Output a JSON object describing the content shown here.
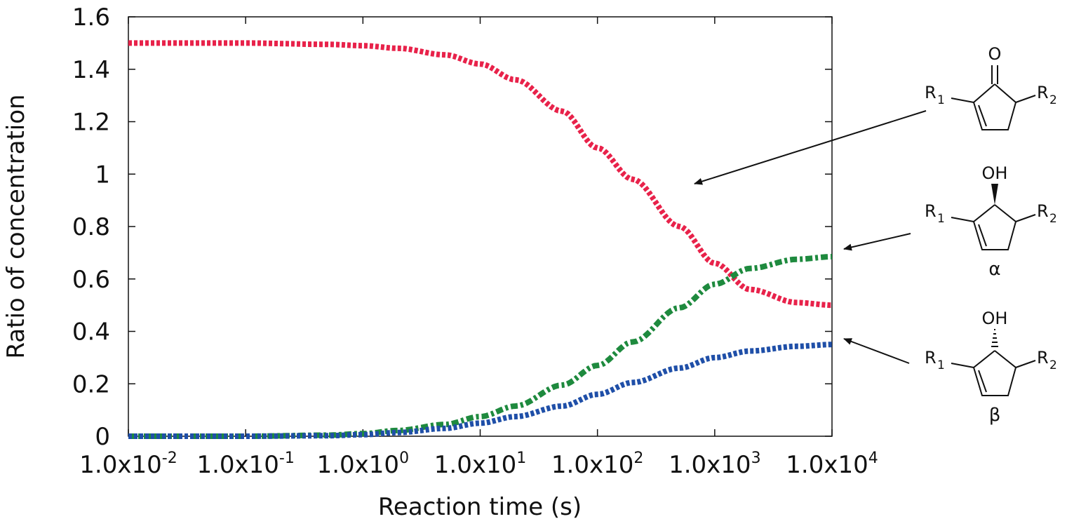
{
  "chart_data": {
    "type": "line",
    "xscale": "log",
    "xlim": [
      0.01,
      10000
    ],
    "ylim": [
      0,
      1.6
    ],
    "ylabel": "Ratio of concentration",
    "xlabel": "Reaction time (s)",
    "x_ticks": [
      {
        "value": 0.01,
        "label": "1.0x10",
        "exp": "-2"
      },
      {
        "value": 0.1,
        "label": "1.0x10",
        "exp": "-1"
      },
      {
        "value": 1,
        "label": "1.0x10",
        "exp": "0"
      },
      {
        "value": 10,
        "label": "1.0x10",
        "exp": "1"
      },
      {
        "value": 100,
        "label": "1.0x10",
        "exp": "2"
      },
      {
        "value": 1000,
        "label": "1.0x10",
        "exp": "3"
      },
      {
        "value": 10000,
        "label": "1.0x10",
        "exp": "4"
      }
    ],
    "y_ticks": [
      {
        "value": 0,
        "label": "0"
      },
      {
        "value": 0.2,
        "label": "0.2"
      },
      {
        "value": 0.4,
        "label": "0.4"
      },
      {
        "value": 0.6,
        "label": "0.6"
      },
      {
        "value": 0.8,
        "label": "0.8"
      },
      {
        "value": 1.0,
        "label": "1"
      },
      {
        "value": 1.2,
        "label": "1.2"
      },
      {
        "value": 1.4,
        "label": "1.4"
      },
      {
        "value": 1.6,
        "label": "1.6"
      }
    ],
    "series": [
      {
        "color": "#e8224a",
        "dash": "dotted",
        "x": [
          0.01,
          0.1,
          0.5,
          1,
          2,
          5,
          10,
          20,
          50,
          100,
          200,
          500,
          1000,
          2000,
          5000,
          10000
        ],
        "y": [
          1.5,
          1.5,
          1.495,
          1.49,
          1.48,
          1.455,
          1.42,
          1.36,
          1.24,
          1.1,
          0.98,
          0.8,
          0.66,
          0.56,
          0.51,
          0.5
        ]
      },
      {
        "color": "#1e8a3e",
        "dash": "dashdot",
        "x": [
          0.01,
          0.1,
          0.5,
          1,
          2,
          5,
          10,
          20,
          50,
          100,
          200,
          500,
          1000,
          2000,
          5000,
          10000
        ],
        "y": [
          0,
          0,
          0.004,
          0.01,
          0.022,
          0.045,
          0.075,
          0.115,
          0.195,
          0.27,
          0.36,
          0.49,
          0.58,
          0.64,
          0.675,
          0.685
        ]
      },
      {
        "color": "#1f4fa8",
        "dash": "dotted",
        "x": [
          0.01,
          0.1,
          0.5,
          1,
          2,
          5,
          10,
          20,
          50,
          100,
          200,
          500,
          1000,
          2000,
          5000,
          10000
        ],
        "y": [
          0,
          0,
          0.002,
          0.006,
          0.014,
          0.03,
          0.05,
          0.075,
          0.115,
          0.16,
          0.205,
          0.26,
          0.3,
          0.325,
          0.343,
          0.35
        ]
      }
    ],
    "annotations": {
      "structures": [
        {
          "top_sub": "O",
          "left_sub": "R",
          "left_sub_index": "1",
          "right_sub": "R",
          "right_sub_index": "2",
          "caption": ""
        },
        {
          "top_sub": "OH",
          "left_sub": "R",
          "left_sub_index": "1",
          "right_sub": "R",
          "right_sub_index": "2",
          "caption": "α"
        },
        {
          "top_sub": "OH",
          "left_sub": "R",
          "left_sub_index": "1",
          "right_sub": "R",
          "right_sub_index": "2",
          "caption": "β"
        }
      ]
    }
  }
}
